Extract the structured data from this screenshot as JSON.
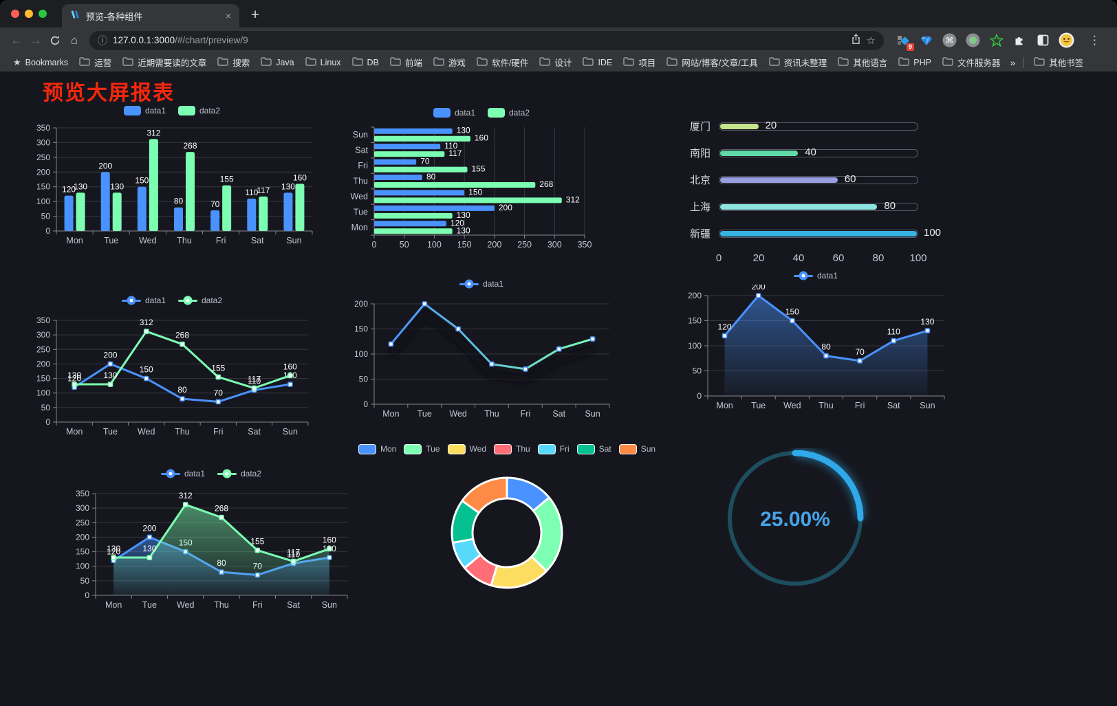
{
  "page": {
    "title": "预览大屏报表",
    "title_color": "#f5270d",
    "background": "#16171e"
  },
  "browser": {
    "tab_title": "预览-各种组件",
    "url_host": "127.0.0.1:3000",
    "url_path": "/#/chart/preview/9",
    "extensions_badge": "9",
    "icons": {
      "back": "←",
      "forward": "→",
      "home": "⌂",
      "info": "ⓘ",
      "star": "☆",
      "menu": "⋮",
      "close": "×",
      "new_tab": "+",
      "bookmark_star": "★",
      "command": "⌘"
    },
    "bookmarks_bar": {
      "root_label": "Bookmarks",
      "items": [
        "运营",
        "近期需要读的文章",
        "搜索",
        "Java",
        "Linux",
        "DB",
        "前端",
        "游戏",
        "软件/硬件",
        "设计",
        "IDE",
        "项目",
        "网站/博客/文章/工具",
        "资讯未整理",
        "其他语言",
        "PHP",
        "文件服务器"
      ],
      "overflow": "»",
      "other": "其他书签"
    }
  },
  "chart_data": [
    {
      "id": "grouped-bar",
      "type": "bar",
      "legend": "rect",
      "labels": true,
      "categories": [
        "Mon",
        "Tue",
        "Wed",
        "Thu",
        "Fri",
        "Sat",
        "Sun"
      ],
      "series": [
        {
          "name": "data1",
          "color": "#4992ff",
          "values": [
            120,
            200,
            150,
            80,
            70,
            110,
            130
          ]
        },
        {
          "name": "data2",
          "color": "#7cffb2",
          "values": [
            130,
            130,
            312,
            268,
            155,
            117,
            160
          ]
        }
      ],
      "ylim": [
        0,
        350
      ],
      "ytick": 50
    },
    {
      "id": "horizontal-bar",
      "type": "bar-horizontal",
      "legend": "rect",
      "labels": true,
      "categories": [
        "Mon",
        "Tue",
        "Wed",
        "Thu",
        "Fri",
        "Sat",
        "Sun"
      ],
      "series": [
        {
          "name": "data1",
          "color": "#4992ff",
          "values": [
            120,
            200,
            150,
            80,
            70,
            110,
            130
          ]
        },
        {
          "name": "data2",
          "color": "#7cffb2",
          "values": [
            130,
            130,
            312,
            268,
            155,
            117,
            160
          ]
        }
      ],
      "xlim": [
        0,
        350
      ],
      "xtick": 50
    },
    {
      "id": "progress-bars",
      "type": "progress",
      "max": 100,
      "ticks": [
        0,
        20,
        40,
        60,
        80,
        100
      ],
      "items": [
        {
          "label": "厦门",
          "value": 20,
          "color": "#c6e48b"
        },
        {
          "label": "南阳",
          "value": 40,
          "color": "#5fd9a6"
        },
        {
          "label": "北京",
          "value": 60,
          "color": "#989fe0"
        },
        {
          "label": "上海",
          "value": 80,
          "color": "#8ce3e0"
        },
        {
          "label": "新疆",
          "value": 100,
          "color": "#38b1e3"
        }
      ]
    },
    {
      "id": "line-two-series",
      "type": "line",
      "legend": "line",
      "labels": true,
      "categories": [
        "Mon",
        "Tue",
        "Wed",
        "Thu",
        "Fri",
        "Sat",
        "Sun"
      ],
      "series": [
        {
          "name": "data1",
          "color": "#4992ff",
          "values": [
            120,
            200,
            150,
            80,
            70,
            110,
            130
          ]
        },
        {
          "name": "data2",
          "color": "#7cffb2",
          "values": [
            130,
            130,
            312,
            268,
            155,
            117,
            160
          ]
        }
      ],
      "ylim": [
        0,
        350
      ],
      "ytick": 50
    },
    {
      "id": "line-gradient",
      "type": "line",
      "legend": "line",
      "labels": false,
      "shadow": true,
      "categories": [
        "Mon",
        "Tue",
        "Wed",
        "Thu",
        "Fri",
        "Sat",
        "Sun"
      ],
      "series": [
        {
          "name": "data1",
          "color": "#4992ff",
          "gradient": [
            "#4992ff",
            "#7cffb2"
          ],
          "values": [
            120,
            200,
            150,
            80,
            70,
            110,
            130
          ]
        }
      ],
      "ylim": [
        0,
        200
      ],
      "ytick": 50
    },
    {
      "id": "area-single",
      "type": "line",
      "legend": "line",
      "labels": true,
      "categories": [
        "Mon",
        "Tue",
        "Wed",
        "Thu",
        "Fri",
        "Sat",
        "Sun"
      ],
      "series": [
        {
          "name": "data1",
          "color": "#4992ff",
          "area": true,
          "values": [
            120,
            200,
            150,
            80,
            70,
            110,
            130
          ]
        }
      ],
      "ylim": [
        0,
        200
      ],
      "ytick": 50
    },
    {
      "id": "area-two-series",
      "type": "line",
      "legend": "line",
      "labels": true,
      "categories": [
        "Mon",
        "Tue",
        "Wed",
        "Thu",
        "Fri",
        "Sat",
        "Sun"
      ],
      "series": [
        {
          "name": "data1",
          "color": "#4992ff",
          "area": true,
          "values": [
            120,
            200,
            150,
            80,
            70,
            110,
            130
          ]
        },
        {
          "name": "data2",
          "color": "#7cffb2",
          "area": true,
          "values": [
            130,
            130,
            312,
            268,
            155,
            117,
            160
          ]
        }
      ],
      "ylim": [
        0,
        350
      ],
      "ytick": 50
    },
    {
      "id": "donut",
      "type": "pie",
      "legend": "rectb",
      "items": [
        {
          "label": "Mon",
          "value": 120,
          "color": "#4992ff"
        },
        {
          "label": "Tue",
          "value": 200,
          "color": "#7cffb2"
        },
        {
          "label": "Wed",
          "value": 150,
          "color": "#fddd60"
        },
        {
          "label": "Thu",
          "value": 80,
          "color": "#ff6e76"
        },
        {
          "label": "Fri",
          "value": 70,
          "color": "#58d9f9"
        },
        {
          "label": "Sat",
          "value": 110,
          "color": "#05c091"
        },
        {
          "label": "Sun",
          "value": 130,
          "color": "#ff8a45"
        }
      ]
    },
    {
      "id": "progress-ring",
      "type": "ring",
      "value": 25,
      "text": "25.00%",
      "track_color": "#1d4e5e",
      "arc_color": "#2fa9e8",
      "text_color": "#45a5e8"
    }
  ]
}
